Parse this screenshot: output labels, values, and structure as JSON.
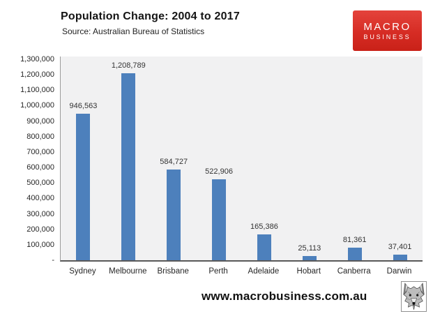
{
  "header": {
    "title": "Population Change: 2004 to 2017",
    "subtitle": "Source: Australian Bureau of Statistics"
  },
  "logo": {
    "line1": "MACRO",
    "line2": "BUSINESS",
    "bg_color": "#d62c24",
    "text_color": "#ffffff"
  },
  "chart_data": {
    "type": "bar",
    "title": "Population Change: 2004 to 2017",
    "subtitle": "Source: Australian Bureau of Statistics",
    "categories": [
      "Sydney",
      "Melbourne",
      "Brisbane",
      "Perth",
      "Adelaide",
      "Hobart",
      "Canberra",
      "Darwin"
    ],
    "values": [
      946563,
      1208789,
      584727,
      522906,
      165386,
      25113,
      81361,
      37401
    ],
    "data_labels": [
      "946,563",
      "1,208,789",
      "584,727",
      "522,906",
      "165,386",
      "25,113",
      "81,361",
      "37,401"
    ],
    "y_ticks": [
      "1,300,000",
      "1,200,000",
      "1,100,000",
      "1,000,000",
      "900,000",
      "800,000",
      "700,000",
      "600,000",
      "500,000",
      "400,000",
      "300,000",
      "200,000",
      "100,000",
      "-"
    ],
    "ylim": [
      0,
      1300000
    ],
    "xlabel": "",
    "ylabel": "",
    "grid": false,
    "legend": false,
    "bar_color": "#4d80bc",
    "plot_bg_color": "#f1f1f2"
  },
  "footer": {
    "website": "www.macrobusiness.com.au",
    "wolf_logo": "wolf-sketch-icon"
  }
}
